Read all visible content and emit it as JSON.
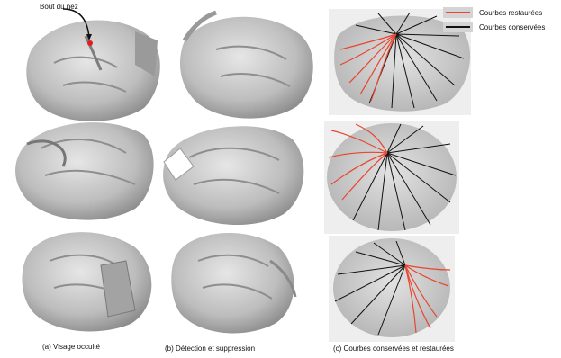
{
  "figure": {
    "annotation_nose_tip": "Bout du nez",
    "legend": {
      "restored": {
        "label": "Courbes restaurées",
        "color": "#e8462e"
      },
      "kept": {
        "label": "Courbes conservées",
        "color": "#111111"
      }
    },
    "captions": {
      "a": "(a) Visage occulté",
      "b": "(b) Détection et suppression",
      "c": "(c) Courbes conservées et restaurées"
    },
    "colors": {
      "face_surface": "#c9c9c9",
      "face_shadow": "#8f8f8f",
      "nose_tip_marker": "#e02020"
    }
  }
}
